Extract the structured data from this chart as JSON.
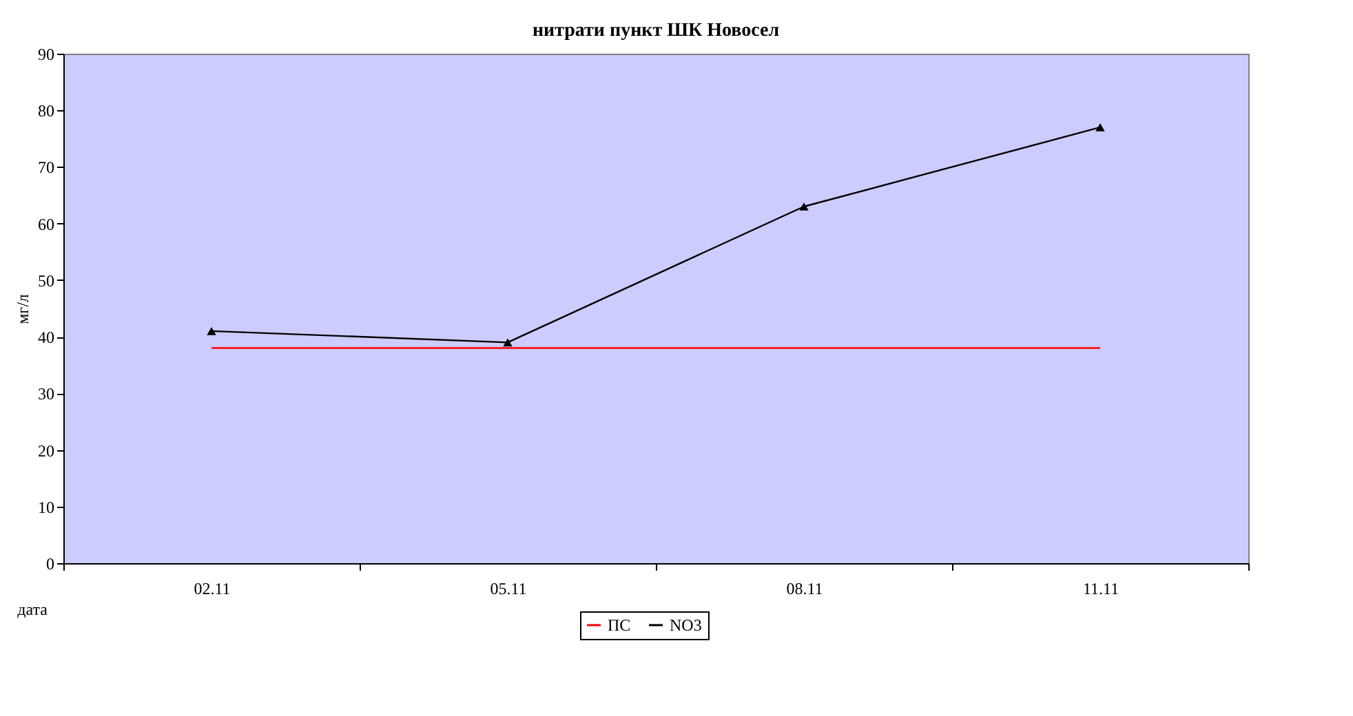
{
  "chart_data": {
    "type": "line",
    "title": "нитрати пункт ШК Новосел",
    "xlabel": "дата",
    "ylabel": "мг/л",
    "categories": [
      "02.11",
      "05.11",
      "08.11",
      "11.11"
    ],
    "series": [
      {
        "name": "ПС",
        "color": "#ff0000",
        "marker": "none",
        "values": [
          38,
          38,
          38,
          38
        ]
      },
      {
        "name": "NO3",
        "color": "#000000",
        "marker": "triangle",
        "values": [
          41,
          39,
          63,
          77
        ]
      }
    ],
    "ylim": [
      0,
      90
    ],
    "yticks": [
      0,
      10,
      20,
      30,
      40,
      50,
      60,
      70,
      80,
      90
    ],
    "grid": false,
    "legend": "bottom"
  }
}
